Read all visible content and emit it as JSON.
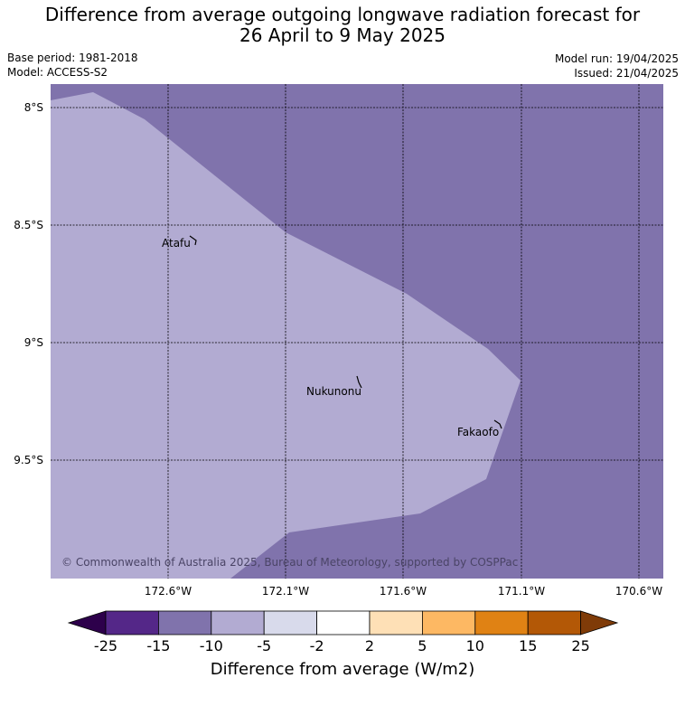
{
  "title": {
    "line1": "Difference from average outgoing longwave radiation forecast for",
    "line2": "26 April to 9 May 2025"
  },
  "meta": {
    "base_period": "Base period: 1981-2018",
    "model": "Model: ACCESS-S2",
    "model_run": "Model run: 19/04/2025",
    "issued": "Issued: 21/04/2025"
  },
  "map": {
    "lat_labels": [
      "8°S",
      "8.5°S",
      "9°S",
      "9.5°S"
    ],
    "lon_labels": [
      "172.6°W",
      "172.1°W",
      "171.6°W",
      "171.1°W",
      "170.6°W"
    ],
    "places": [
      {
        "name": "Atafu"
      },
      {
        "name": "Nukunonu"
      },
      {
        "name": "Fakaofo"
      }
    ],
    "copyright": "© Commonwealth of Australia 2025, Bureau of Meteorology, supported by COSPPac",
    "colors": {
      "band_minus15_minus10": "#8073ac",
      "band_minus10_minus5": "#b2abd2"
    }
  },
  "colorbar": {
    "title": "Difference from average (W/m2)",
    "tick_labels": [
      "-25",
      "-15",
      "-10",
      "-5",
      "-2",
      "2",
      "5",
      "10",
      "15",
      "25"
    ],
    "colors": [
      "#2d004b",
      "#542788",
      "#8073ac",
      "#b2abd2",
      "#d8daeb",
      "#ffffff",
      "#fee0b6",
      "#fdb863",
      "#e08214",
      "#b35806",
      "#7f3b08"
    ]
  }
}
